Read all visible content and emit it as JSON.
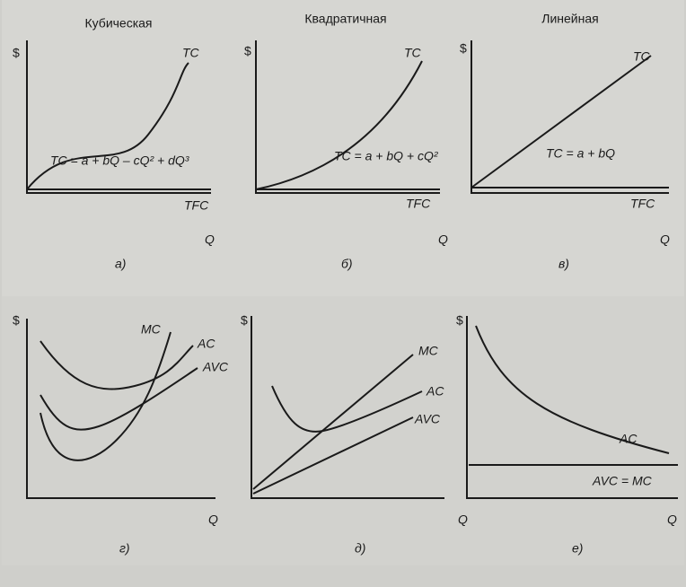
{
  "columns": [
    "Кубическая",
    "Квадратичная",
    "Линейная"
  ],
  "panels": [
    {
      "label": "а)",
      "y_axis": "$",
      "x_axis": "Q",
      "curves": [
        "TC",
        "TFC"
      ],
      "formula": "TC = a + bQ – cQ² + dQ³"
    },
    {
      "label": "б)",
      "y_axis": "$",
      "x_axis": "Q",
      "curves": [
        "TC",
        "TFC"
      ],
      "formula": "TC = a + bQ + cQ²"
    },
    {
      "label": "в)",
      "y_axis": "$",
      "x_axis": "Q",
      "curves": [
        "TC",
        "TFC"
      ],
      "formula": "TC = a + bQ"
    },
    {
      "label": "г)",
      "y_axis": "$",
      "x_axis": "Q",
      "curves": [
        "MC",
        "AC",
        "AVC"
      ]
    },
    {
      "label": "д)",
      "y_axis": "$",
      "x_axis": "Q",
      "curves": [
        "MC",
        "AC",
        "AVC"
      ]
    },
    {
      "label": "е)",
      "y_axis": "$",
      "x_axis": "Q",
      "curves": [
        "AC",
        "AVC = MC"
      ]
    }
  ]
}
